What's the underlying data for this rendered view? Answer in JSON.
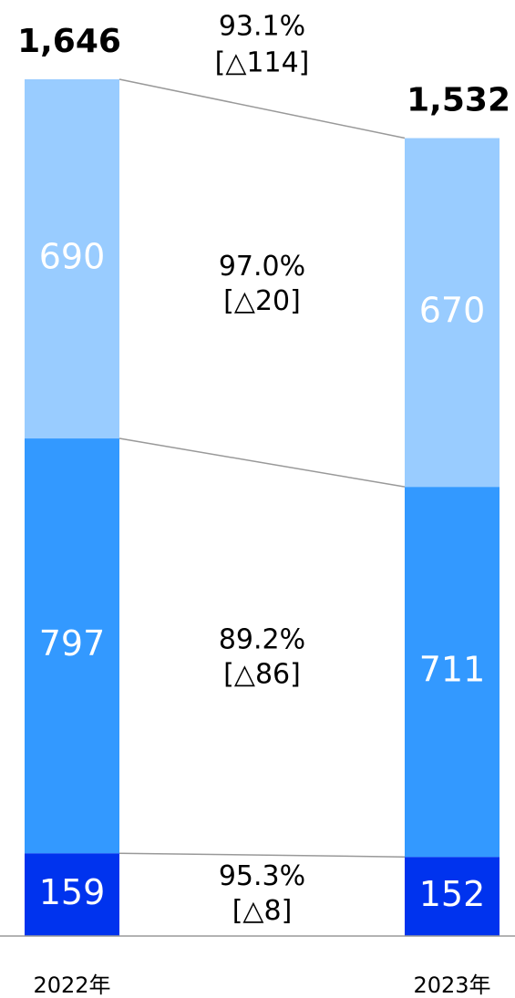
{
  "chart_data": {
    "type": "stacked_bar",
    "categories": [
      "2022年",
      "2023年"
    ],
    "series": [
      {
        "name": null,
        "color": "#0033ee",
        "values": [
          159,
          152
        ],
        "change_ratio": "95.3%",
        "change": "[△8]"
      },
      {
        "name": null,
        "color": "#3399ff",
        "values": [
          797,
          711
        ],
        "change_ratio": "89.2%",
        "change": "[△86]"
      },
      {
        "name": null,
        "color": "#99ccff",
        "values": [
          690,
          670
        ],
        "change_ratio": "97.0%",
        "change": "[△20]"
      }
    ],
    "totals": [
      1646,
      1532
    ],
    "total_labels": [
      "1,646",
      "1,532"
    ],
    "total_change_ratio": "93.1%",
    "total_change": "[△114]"
  }
}
